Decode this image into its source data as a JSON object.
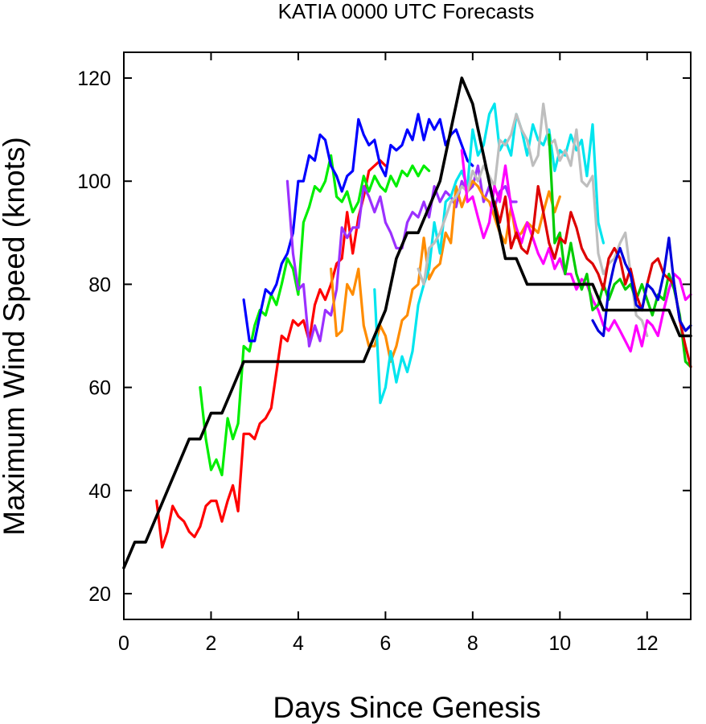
{
  "chart_data": {
    "type": "line",
    "title": "KATIA 0000 UTC Forecasts",
    "xlabel": "Days Since Genesis",
    "ylabel": "Maximum Wind Speed (knots)",
    "xlim": [
      0,
      13
    ],
    "ylim": [
      15,
      125
    ],
    "xticks": [
      0,
      2,
      4,
      6,
      8,
      10,
      12
    ],
    "xtick_labels": [
      "0",
      "2",
      "4",
      "6",
      "8",
      "10",
      "12"
    ],
    "yticks": [
      20,
      40,
      60,
      80,
      100,
      120
    ],
    "ytick_labels": [
      "20",
      "40",
      "60",
      "80",
      "100",
      "120"
    ],
    "grid": false,
    "legend": "none",
    "series": [
      {
        "color": "#000000",
        "role": "observed",
        "x": [
          0,
          0.25,
          0.5,
          0.75,
          1.0,
          1.25,
          1.5,
          1.75,
          2.0,
          2.25,
          2.5,
          2.75,
          3.0,
          3.25,
          3.5,
          3.75,
          4.0,
          4.25,
          4.5,
          4.75,
          5.0,
          5.25,
          5.5,
          5.75,
          6.0,
          6.25,
          6.5,
          6.75,
          7.0,
          7.25,
          7.5,
          7.75,
          8.0,
          8.25,
          8.5,
          8.75,
          9.0,
          9.25,
          9.5,
          9.75,
          10.0,
          10.25,
          10.5,
          10.75,
          11.0,
          11.25,
          11.5,
          11.75,
          12.0,
          12.25,
          12.5,
          12.75,
          13.0
        ],
        "y": [
          25,
          30,
          30,
          35,
          40,
          45,
          50,
          50,
          55,
          55,
          60,
          65,
          65,
          65,
          65,
          65,
          65,
          65,
          65,
          65,
          65,
          65,
          65,
          70,
          75,
          85,
          90,
          90,
          95,
          100,
          110,
          120,
          115,
          105,
          95,
          85,
          85,
          80,
          80,
          80,
          80,
          80,
          80,
          80,
          75,
          75,
          75,
          75,
          75,
          75,
          75,
          70,
          70
        ]
      },
      {
        "color": "#ff0000",
        "x": [
          0.75,
          0.88,
          1.0,
          1.12,
          1.25,
          1.38,
          1.5,
          1.62,
          1.75,
          1.88,
          2.0,
          2.12,
          2.25,
          2.38,
          2.5,
          2.62,
          2.75,
          2.88,
          3.0,
          3.12,
          3.25,
          3.38,
          3.5,
          3.62,
          3.75,
          3.88,
          4.0,
          4.12,
          4.25,
          4.38,
          4.5,
          4.62,
          4.75,
          4.88,
          5.0,
          5.12,
          5.25,
          5.38,
          5.5,
          5.62,
          5.75,
          5.88,
          6.0
        ],
        "y": [
          38,
          29,
          32,
          37,
          35,
          34,
          32,
          31,
          33,
          37,
          38,
          38,
          34,
          38,
          41,
          36,
          51,
          51,
          50,
          53,
          54,
          56,
          63,
          70,
          69,
          73,
          72,
          73,
          69,
          76,
          79,
          77,
          80,
          84,
          85,
          94,
          86,
          93,
          97,
          102,
          103,
          104,
          103
        ]
      },
      {
        "color": "#00ee00",
        "x": [
          1.75,
          1.88,
          2.0,
          2.12,
          2.25,
          2.38,
          2.5,
          2.62,
          2.75,
          2.88,
          3.0,
          3.12,
          3.25,
          3.38,
          3.5,
          3.62,
          3.75,
          3.88,
          4.0,
          4.12,
          4.25,
          4.38,
          4.5,
          4.62,
          4.75,
          4.88,
          5.0,
          5.12,
          5.25,
          5.38,
          5.5,
          5.62,
          5.75,
          5.88,
          6.0,
          6.12,
          6.25,
          6.38,
          6.5,
          6.62,
          6.75,
          6.88,
          7.0
        ],
        "y": [
          60,
          50,
          44,
          46,
          43,
          54,
          50,
          53,
          68,
          67,
          72,
          75,
          74,
          78,
          76,
          80,
          85,
          83,
          78,
          92,
          95,
          99,
          98,
          100,
          105,
          97,
          96,
          98,
          94,
          96,
          101,
          98,
          101,
          99,
          98,
          101,
          99,
          102,
          101,
          103,
          101,
          103,
          102
        ]
      },
      {
        "color": "#0000ff",
        "x": [
          2.75,
          2.88,
          3.0,
          3.12,
          3.25,
          3.38,
          3.5,
          3.62,
          3.75,
          3.88,
          4.0,
          4.12,
          4.25,
          4.38,
          4.5,
          4.62,
          4.75,
          4.88,
          5.0,
          5.12,
          5.25,
          5.38,
          5.5,
          5.62,
          5.75,
          5.88,
          6.0,
          6.12,
          6.25,
          6.38,
          6.5,
          6.62,
          6.75,
          6.88,
          7.0,
          7.12,
          7.25,
          7.38,
          7.5,
          7.62,
          7.75,
          7.88,
          8.0
        ],
        "y": [
          77,
          69,
          69,
          74,
          79,
          78,
          80,
          84,
          86,
          90,
          100,
          100,
          105,
          104,
          109,
          108,
          103,
          101,
          98,
          101,
          102,
          112,
          109,
          107,
          108,
          103,
          101,
          107,
          106,
          107,
          110,
          108,
          113,
          108,
          112,
          110,
          112,
          107,
          109,
          110,
          107,
          104,
          103
        ]
      },
      {
        "color": "#9b30ff",
        "x": [
          3.75,
          3.88,
          4.0,
          4.12,
          4.25,
          4.38,
          4.5,
          4.62,
          4.75,
          4.88,
          5.0,
          5.12,
          5.25,
          5.38,
          5.5,
          5.62,
          5.75,
          5.88,
          6.0,
          6.12,
          6.25,
          6.38,
          6.5,
          6.62,
          6.75,
          6.88,
          7.0,
          7.12,
          7.25,
          7.38,
          7.5,
          7.62,
          7.75,
          7.88,
          8.0,
          8.12,
          8.25,
          8.38,
          8.5,
          8.62,
          8.75,
          8.88,
          9.0
        ],
        "y": [
          100,
          86,
          79,
          80,
          68,
          72,
          69,
          75,
          74,
          79,
          91,
          89,
          91,
          91,
          99,
          97,
          94,
          97,
          92,
          90,
          87,
          87,
          92,
          94,
          93,
          96,
          93,
          99,
          96,
          98,
          97,
          95,
          100,
          98,
          99,
          103,
          96,
          99,
          95,
          98,
          99,
          96,
          96
        ]
      },
      {
        "color": "#ff8c00",
        "x": [
          4.75,
          4.88,
          5.0,
          5.12,
          5.25,
          5.38,
          5.5,
          5.62,
          5.75,
          5.88,
          6.0,
          6.12,
          6.25,
          6.38,
          6.5,
          6.62,
          6.75,
          6.88,
          7.0,
          7.12,
          7.25,
          7.38,
          7.5,
          7.62,
          7.75,
          7.88,
          8.0,
          8.12,
          8.25,
          8.38,
          8.5,
          8.62,
          8.75,
          8.88,
          9.0,
          9.12,
          9.25,
          9.38,
          9.5,
          9.62,
          9.75,
          9.88,
          10.0
        ],
        "y": [
          83,
          70,
          71,
          80,
          78,
          83,
          72,
          68,
          68,
          72,
          70,
          65,
          68,
          73,
          74,
          79,
          80,
          89,
          81,
          83,
          84,
          90,
          88,
          99,
          95,
          98,
          100,
          99,
          97,
          96,
          93,
          90,
          88,
          95,
          89,
          90,
          92,
          91,
          90,
          94,
          98,
          94,
          97
        ]
      },
      {
        "color": "#00e5ee",
        "x": [
          5.75,
          5.88,
          6.0,
          6.12,
          6.25,
          6.38,
          6.5,
          6.62,
          6.75,
          6.88,
          7.0,
          7.12,
          7.25,
          7.38,
          7.5,
          7.62,
          7.75,
          7.88,
          8.0,
          8.12,
          8.25,
          8.38,
          8.5,
          8.62,
          8.75,
          8.88,
          9.0,
          9.12,
          9.25,
          9.38,
          9.5,
          9.62,
          9.75,
          9.88,
          10.0,
          10.12,
          10.25,
          10.38,
          10.5,
          10.62,
          10.75,
          10.88,
          11.0
        ],
        "y": [
          79,
          57,
          60,
          67,
          61,
          66,
          63,
          67,
          76,
          80,
          83,
          92,
          86,
          96,
          97,
          100,
          102,
          99,
          110,
          105,
          107,
          113,
          115,
          106,
          108,
          105,
          113,
          110,
          105,
          111,
          108,
          107,
          110,
          102,
          106,
          105,
          109,
          106,
          108,
          101,
          111,
          92,
          88
        ]
      },
      {
        "color": "#bebebe",
        "x": [
          6.75,
          6.88,
          7.0,
          7.12,
          7.25,
          7.38,
          7.5,
          7.62,
          7.75,
          7.88,
          8.0,
          8.12,
          8.25,
          8.38,
          8.5,
          8.62,
          8.75,
          8.88,
          9.0,
          9.12,
          9.25,
          9.38,
          9.5,
          9.62,
          9.75,
          9.88,
          10.0,
          10.12,
          10.25,
          10.38,
          10.5,
          10.62,
          10.75,
          10.88,
          11.0,
          11.12,
          11.25,
          11.38,
          11.5,
          11.62,
          11.75,
          11.88,
          12.0
        ],
        "y": [
          83,
          80,
          87,
          88,
          90,
          93,
          96,
          97,
          99,
          98,
          102,
          100,
          103,
          101,
          99,
          108,
          107,
          109,
          113,
          110,
          108,
          103,
          105,
          115,
          107,
          108,
          104,
          106,
          103,
          110,
          100,
          99,
          101,
          86,
          82,
          84,
          85,
          88,
          90,
          82,
          74,
          73,
          70
        ]
      },
      {
        "color": "#ff00ff",
        "x": [
          7.75,
          7.88,
          8.0,
          8.12,
          8.25,
          8.38,
          8.5,
          8.62,
          8.75,
          8.88,
          9.0,
          9.12,
          9.25,
          9.38,
          9.5,
          9.62,
          9.75,
          9.88,
          10.0,
          10.12,
          10.25,
          10.38,
          10.5,
          10.62,
          10.75,
          10.88,
          11.0,
          11.12,
          11.25,
          11.38,
          11.5,
          11.62,
          11.75,
          11.88,
          12.0,
          12.12,
          12.25,
          12.38,
          12.5,
          12.62,
          12.75,
          12.88,
          13.0
        ],
        "y": [
          106,
          96,
          97,
          93,
          89,
          92,
          99,
          96,
          103,
          95,
          91,
          88,
          92,
          89,
          86,
          84,
          87,
          83,
          85,
          82,
          82,
          79,
          81,
          80,
          77,
          75,
          72,
          71,
          73,
          71,
          69,
          67,
          72,
          68,
          73,
          72,
          70,
          75,
          79,
          82,
          81,
          77,
          78
        ]
      },
      {
        "color": "#00cc00",
        "x": [
          9.75,
          9.88,
          10.0,
          10.12,
          10.25,
          10.38,
          10.5,
          10.62,
          10.75,
          10.88,
          11.0,
          11.12,
          11.25,
          11.38,
          11.5,
          11.62,
          11.75,
          11.88,
          12.0,
          12.12,
          12.25,
          12.38,
          12.5,
          12.62,
          12.75,
          12.88,
          13.0
        ],
        "y": [
          109,
          88,
          90,
          82,
          88,
          82,
          79,
          82,
          75,
          76,
          80,
          77,
          80,
          81,
          79,
          80,
          77,
          80,
          77,
          74,
          78,
          77,
          82,
          79,
          74,
          65,
          64
        ]
      },
      {
        "color": "#dd0000",
        "x": [
          8.5,
          8.62,
          8.75,
          8.88,
          9.0,
          9.12,
          9.25,
          9.38,
          9.5,
          9.62,
          9.75,
          9.88,
          10.0,
          10.12,
          10.25,
          10.38,
          10.5,
          10.62,
          10.75,
          10.88,
          11.0,
          11.12,
          11.25,
          11.38,
          11.5,
          11.62,
          11.75,
          11.88,
          12.0,
          12.12,
          12.25,
          12.38,
          12.5,
          12.62,
          12.75,
          12.88,
          13.0
        ],
        "y": [
          96,
          92,
          97,
          87,
          90,
          87,
          86,
          90,
          99,
          94,
          88,
          85,
          89,
          88,
          94,
          91,
          87,
          85,
          84,
          82,
          79,
          85,
          87,
          85,
          80,
          83,
          78,
          75,
          80,
          84,
          85,
          82,
          81,
          80,
          73,
          68,
          64
        ]
      },
      {
        "color": "#0000dd",
        "x": [
          10.75,
          10.88,
          11.0,
          11.12,
          11.25,
          11.38,
          11.5,
          11.62,
          11.75,
          11.88,
          12.0,
          12.12,
          12.25,
          12.38,
          12.5,
          12.62,
          12.75,
          12.88,
          13.0
        ],
        "y": [
          73,
          71,
          70,
          79,
          84,
          87,
          84,
          82,
          76,
          75,
          80,
          79,
          77,
          82,
          89,
          80,
          73,
          71,
          72
        ]
      }
    ]
  }
}
